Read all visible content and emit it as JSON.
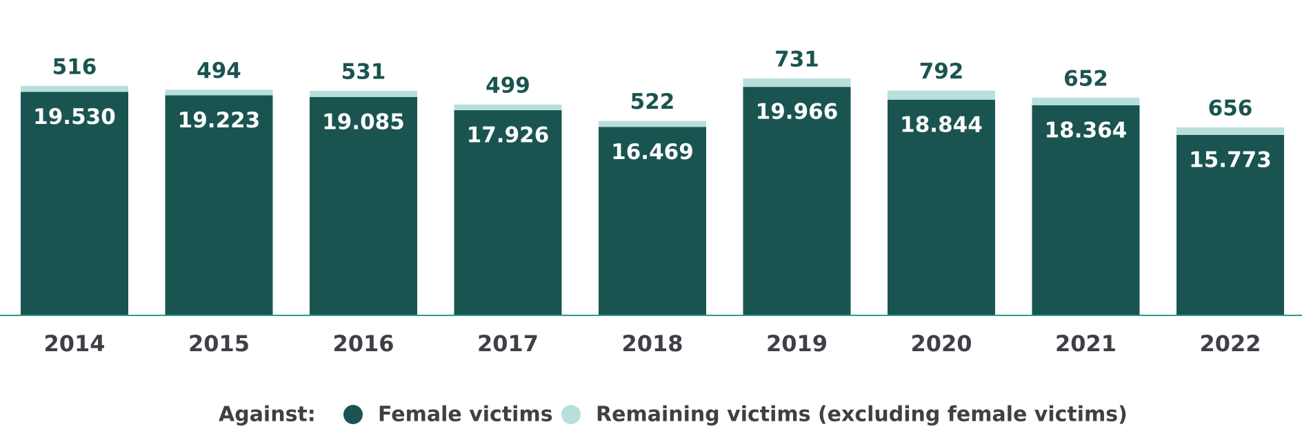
{
  "chart_data": {
    "type": "stacked_bar",
    "categories": [
      "2014",
      "2015",
      "2016",
      "2017",
      "2018",
      "2019",
      "2020",
      "2021",
      "2022"
    ],
    "legend_title": "Against:",
    "series": [
      {
        "name": "Female victims",
        "color": "#1a5450",
        "values": [
          19530,
          19223,
          19085,
          17926,
          16469,
          19966,
          18844,
          18364,
          15773
        ],
        "value_labels": [
          "19.530",
          "19.223",
          "19.085",
          "17.926",
          "16.469",
          "19.966",
          "18.844",
          "18.364",
          "15.773"
        ]
      },
      {
        "name": "Remaining victims (excluding female victims)",
        "color": "#b7dfdc",
        "values": [
          516,
          494,
          531,
          499,
          522,
          731,
          792,
          652,
          656
        ]
      }
    ]
  }
}
